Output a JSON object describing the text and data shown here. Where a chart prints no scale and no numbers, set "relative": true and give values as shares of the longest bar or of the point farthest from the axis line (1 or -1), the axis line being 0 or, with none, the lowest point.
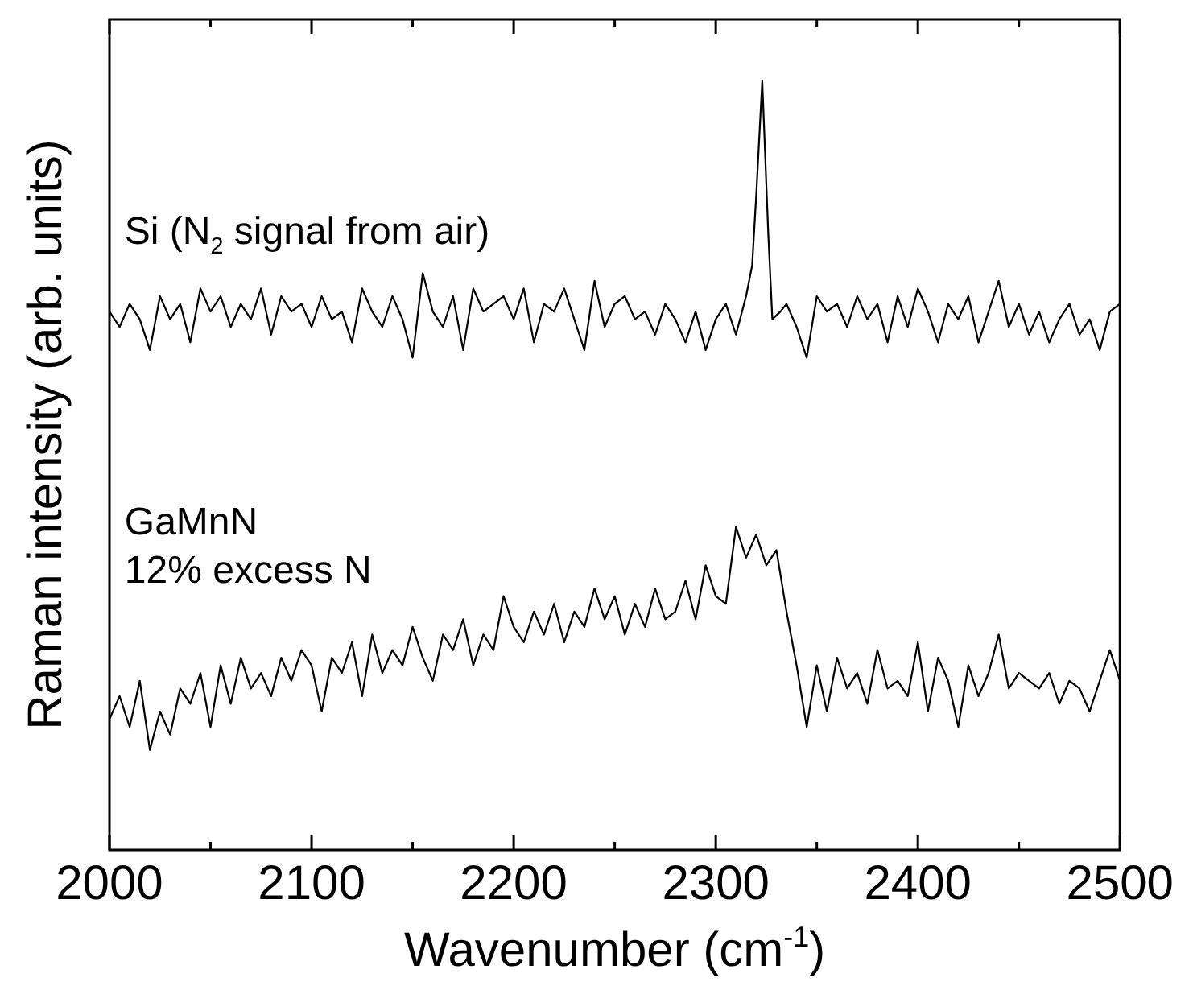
{
  "chart_data": {
    "type": "line",
    "relative": true,
    "xlabel": "Wavenumber (cm$^{-1}$)",
    "ylabel": "Raman intensity (arb. units)",
    "xlim": [
      2000,
      2500
    ],
    "xticks": [
      2000,
      {
        "value": 2050,
        "label": null
      },
      2100,
      {
        "value": 2150,
        "label": null
      },
      2200,
      {
        "value": 2250,
        "label": null
      },
      2300,
      {
        "value": 2350,
        "label": null
      },
      2400,
      {
        "value": 2450,
        "label": null
      },
      2500
    ],
    "grid": false,
    "legend": false,
    "marker": "none",
    "line_style": "solid",
    "annotations": [
      "Si (N$_{2}$ signal from air)",
      "GaMnN\n12% excess N"
    ],
    "series": [
      {
        "color": "#000000",
        "x": [
          2000,
          2005,
          2010,
          2015,
          2020,
          2025,
          2030,
          2035,
          2040,
          2045,
          2050,
          2055,
          2060,
          2065,
          2070,
          2075,
          2080,
          2085,
          2090,
          2095,
          2100,
          2105,
          2110,
          2115,
          2120,
          2125,
          2130,
          2135,
          2140,
          2145,
          2150,
          2155,
          2160,
          2165,
          2170,
          2175,
          2180,
          2185,
          2190,
          2195,
          2200,
          2205,
          2210,
          2215,
          2220,
          2225,
          2230,
          2235,
          2240,
          2245,
          2250,
          2255,
          2260,
          2265,
          2270,
          2275,
          2280,
          2285,
          2290,
          2295,
          2300,
          2305,
          2310,
          2315,
          2318,
          2320,
          2323,
          2326,
          2328,
          2332,
          2335,
          2340,
          2345,
          2350,
          2355,
          2360,
          2365,
          2370,
          2375,
          2380,
          2385,
          2390,
          2395,
          2400,
          2405,
          2410,
          2415,
          2420,
          2425,
          2430,
          2435,
          2440,
          2445,
          2450,
          2455,
          2460,
          2465,
          2470,
          2475,
          2480,
          2485,
          2490,
          2495,
          2500
        ],
        "values": [
          0.7,
          0.68,
          0.71,
          0.69,
          0.65,
          0.72,
          0.69,
          0.71,
          0.66,
          0.73,
          0.7,
          0.72,
          0.68,
          0.71,
          0.69,
          0.73,
          0.67,
          0.72,
          0.7,
          0.71,
          0.68,
          0.72,
          0.69,
          0.7,
          0.66,
          0.73,
          0.7,
          0.68,
          0.72,
          0.69,
          0.64,
          0.75,
          0.7,
          0.68,
          0.72,
          0.65,
          0.73,
          0.7,
          0.71,
          0.72,
          0.69,
          0.73,
          0.66,
          0.71,
          0.7,
          0.73,
          0.69,
          0.65,
          0.74,
          0.68,
          0.71,
          0.72,
          0.69,
          0.7,
          0.67,
          0.71,
          0.69,
          0.66,
          0.7,
          0.65,
          0.69,
          0.71,
          0.67,
          0.72,
          0.76,
          0.85,
          1,
          0.8,
          0.69,
          0.7,
          0.71,
          0.68,
          0.64,
          0.72,
          0.7,
          0.71,
          0.68,
          0.72,
          0.69,
          0.71,
          0.66,
          0.72,
          0.68,
          0.73,
          0.7,
          0.66,
          0.71,
          0.69,
          0.72,
          0.66,
          0.7,
          0.74,
          0.68,
          0.71,
          0.67,
          0.7,
          0.66,
          0.69,
          0.71,
          0.67,
          0.69,
          0.65,
          0.7,
          0.71
        ]
      },
      {
        "color": "#000000",
        "x": [
          2000,
          2005,
          2010,
          2015,
          2020,
          2025,
          2030,
          2035,
          2040,
          2045,
          2050,
          2055,
          2060,
          2065,
          2070,
          2075,
          2080,
          2085,
          2090,
          2095,
          2100,
          2105,
          2110,
          2115,
          2120,
          2125,
          2130,
          2135,
          2140,
          2145,
          2150,
          2155,
          2160,
          2165,
          2170,
          2175,
          2180,
          2185,
          2190,
          2195,
          2200,
          2205,
          2210,
          2215,
          2220,
          2225,
          2230,
          2235,
          2240,
          2245,
          2250,
          2255,
          2260,
          2265,
          2270,
          2275,
          2280,
          2285,
          2290,
          2295,
          2300,
          2305,
          2310,
          2315,
          2320,
          2325,
          2330,
          2335,
          2340,
          2345,
          2350,
          2355,
          2360,
          2365,
          2370,
          2375,
          2380,
          2385,
          2390,
          2395,
          2400,
          2405,
          2410,
          2415,
          2420,
          2425,
          2430,
          2435,
          2440,
          2445,
          2450,
          2455,
          2460,
          2465,
          2470,
          2475,
          2480,
          2485,
          2490,
          2495,
          2500
        ],
        "values": [
          0.17,
          0.2,
          0.16,
          0.22,
          0.13,
          0.18,
          0.15,
          0.21,
          0.19,
          0.23,
          0.16,
          0.24,
          0.19,
          0.25,
          0.21,
          0.23,
          0.2,
          0.25,
          0.22,
          0.26,
          0.24,
          0.18,
          0.25,
          0.23,
          0.27,
          0.2,
          0.28,
          0.23,
          0.26,
          0.24,
          0.29,
          0.25,
          0.22,
          0.28,
          0.26,
          0.3,
          0.24,
          0.28,
          0.26,
          0.33,
          0.29,
          0.27,
          0.31,
          0.28,
          0.32,
          0.27,
          0.31,
          0.29,
          0.34,
          0.3,
          0.33,
          0.28,
          0.32,
          0.29,
          0.34,
          0.3,
          0.31,
          0.35,
          0.3,
          0.37,
          0.33,
          0.32,
          0.42,
          0.38,
          0.41,
          0.37,
          0.39,
          0.31,
          0.24,
          0.16,
          0.24,
          0.18,
          0.25,
          0.21,
          0.23,
          0.19,
          0.26,
          0.21,
          0.22,
          0.2,
          0.27,
          0.18,
          0.25,
          0.22,
          0.16,
          0.24,
          0.2,
          0.23,
          0.28,
          0.21,
          0.23,
          0.22,
          0.21,
          0.23,
          0.19,
          0.22,
          0.21,
          0.18,
          0.22,
          0.26,
          0.22
        ]
      }
    ]
  }
}
